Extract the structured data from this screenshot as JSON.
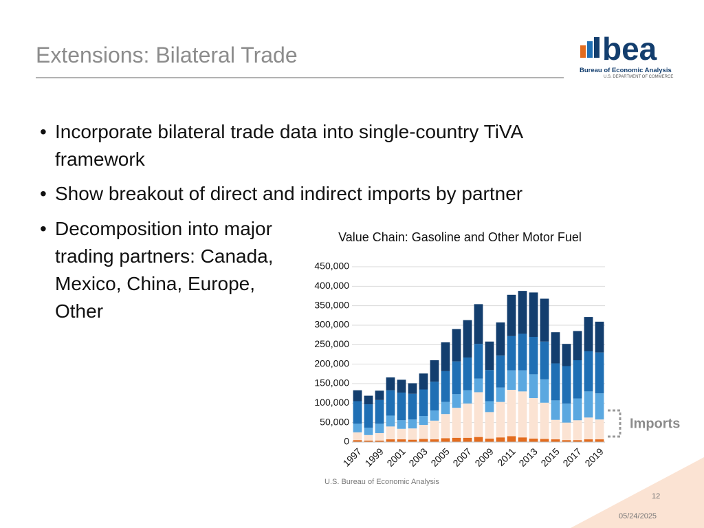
{
  "slide": {
    "title": "Extensions: Bilateral Trade",
    "logo": {
      "mark": "bea",
      "name": "Bureau of Economic Analysis",
      "dept": "U.S. DEPARTMENT OF COMMERCE"
    },
    "bullets": [
      "Incorporate bilateral trade data into single-country TiVA framework",
      "Show breakout of direct and indirect imports by partner",
      "Decomposition into major trading partners: Canada, Mexico, China, Europe, Other"
    ],
    "source": "U.S. Bureau of Economic Analysis",
    "page": "12",
    "date": "05/24/2025"
  },
  "chart_data": {
    "type": "stacked_bar",
    "title": "Value Chain: Gasoline and Other Motor Fuel",
    "annotation": "Imports",
    "categories": [
      "1997",
      null,
      "1999",
      null,
      "2001",
      null,
      "2003",
      null,
      "2005",
      null,
      "2007",
      null,
      "2009",
      null,
      "2011",
      null,
      "2013",
      null,
      "2015",
      null,
      "2017",
      null,
      "2019"
    ],
    "series": [
      {
        "color": "#e36c1f",
        "values": [
          5000,
          4000,
          4000,
          7000,
          7000,
          6000,
          8000,
          7000,
          10000,
          11000,
          11000,
          13000,
          9000,
          12000,
          15000,
          12000,
          9000,
          8000,
          7000,
          5000,
          5000,
          7000,
          7000
        ]
      },
      {
        "color": "#fbe3d3",
        "values": [
          20000,
          14000,
          19000,
          33000,
          27000,
          29000,
          36000,
          48000,
          62000,
          77000,
          88000,
          115000,
          68000,
          91000,
          119000,
          118000,
          104000,
          93000,
          50000,
          45000,
          51000,
          56000,
          51000
        ]
      },
      {
        "color": "#5ba8e0",
        "values": [
          22000,
          19000,
          24000,
          28000,
          22000,
          23000,
          23000,
          26000,
          31000,
          35000,
          34000,
          35000,
          28000,
          37000,
          50000,
          54000,
          61000,
          60000,
          50000,
          49000,
          56000,
          67000,
          67000
        ]
      },
      {
        "color": "#1f6fb4",
        "values": [
          58000,
          60000,
          61000,
          65000,
          71000,
          66000,
          68000,
          74000,
          79000,
          84000,
          84000,
          89000,
          80000,
          82000,
          88000,
          94000,
          96000,
          97000,
          95000,
          96000,
          98000,
          103000,
          105000
        ]
      },
      {
        "color": "#133e6e",
        "values": [
          28000,
          22000,
          24000,
          33000,
          33000,
          27000,
          41000,
          55000,
          74000,
          83000,
          96000,
          102000,
          73000,
          85000,
          106000,
          110000,
          114000,
          110000,
          80000,
          57000,
          75000,
          88000,
          79000
        ]
      }
    ],
    "ylim": [
      0,
      450000
    ],
    "yticks": [
      0,
      {
        "value": 50000,
        "label": "50,000"
      },
      {
        "value": 100000,
        "label": "100,000"
      },
      {
        "value": 150000,
        "label": "150,000"
      },
      {
        "value": 200000,
        "label": "200,000"
      },
      {
        "value": 250000,
        "label": "250,000"
      },
      {
        "value": 300000,
        "label": "300,000"
      },
      {
        "value": 350000,
        "label": "350,000"
      },
      {
        "value": 400000,
        "label": "400,000"
      },
      {
        "value": 450000,
        "label": "450,000"
      }
    ],
    "grid": true
  }
}
